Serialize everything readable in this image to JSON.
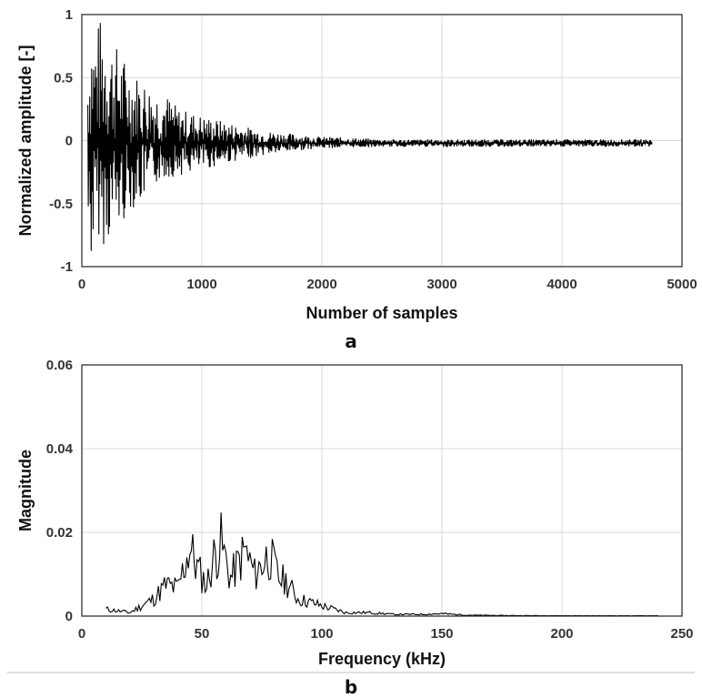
{
  "chart_data": [
    {
      "type": "line",
      "panel_label": "a",
      "xlabel": "Number of samples",
      "ylabel": "Normalized amplitude [-]",
      "xlim": [
        0,
        5000
      ],
      "ylim": [
        -1,
        1
      ],
      "xticks": [
        0,
        1000,
        2000,
        3000,
        4000,
        5000
      ],
      "yticks": [
        -1,
        -0.5,
        0,
        0.5,
        1
      ],
      "xtick_labels": [
        "0",
        "1000",
        "2000",
        "3000",
        "4000",
        "5000"
      ],
      "ytick_labels": [
        "-1",
        "-0.5",
        "0",
        "0.5",
        "1"
      ],
      "grid": true,
      "series_color": "#000000",
      "series": [
        {
          "x": [
            50,
            80,
            100,
            150,
            200,
            250,
            300,
            400,
            500,
            600,
            700,
            800,
            1000,
            1200,
            1500,
            1800,
            2000,
            2100,
            2500,
            3000,
            3500,
            4000,
            4500,
            4750
          ],
          "envelope_upper": [
            0.6,
            1.0,
            0.85,
            0.98,
            0.95,
            0.8,
            0.75,
            0.58,
            0.5,
            0.42,
            0.38,
            0.26,
            0.2,
            0.15,
            0.08,
            0.05,
            0.03,
            0.03,
            0.01,
            0.01,
            0.01,
            0.01,
            0.01,
            0.01
          ],
          "envelope_lower": [
            -0.9,
            -1.0,
            -0.85,
            -0.75,
            -0.88,
            -0.7,
            -0.72,
            -0.55,
            -0.5,
            -0.36,
            -0.3,
            -0.28,
            -0.24,
            -0.18,
            -0.12,
            -0.08,
            -0.06,
            -0.06,
            -0.05,
            -0.05,
            -0.05,
            -0.05,
            -0.05,
            -0.05
          ],
          "baseline": -0.02
        }
      ]
    },
    {
      "type": "line",
      "panel_label": "b",
      "xlabel": "Frequency (kHz)",
      "ylabel": "Magnitude",
      "xlim": [
        0,
        250
      ],
      "ylim": [
        0,
        0.06
      ],
      "xticks": [
        0,
        50,
        100,
        150,
        200,
        250
      ],
      "yticks": [
        0,
        0.02,
        0.04,
        0.06
      ],
      "xtick_labels": [
        "0",
        "50",
        "100",
        "150",
        "200",
        "250"
      ],
      "ytick_labels": [
        "0",
        "0.02",
        "0.04",
        "0.06"
      ],
      "grid": true,
      "series_color": "#000000",
      "series": [
        {
          "x": [
            10,
            20,
            25,
            30,
            35,
            40,
            45,
            48,
            52,
            55,
            58,
            62,
            65,
            68,
            72,
            75,
            78,
            82,
            85,
            90,
            95,
            100,
            105,
            110,
            120,
            130,
            140,
            150,
            160,
            170,
            200,
            240
          ],
          "y": [
            0.002,
            0.001,
            0.003,
            0.005,
            0.009,
            0.008,
            0.02,
            0.014,
            0.009,
            0.017,
            0.021,
            0.011,
            0.015,
            0.019,
            0.012,
            0.015,
            0.018,
            0.011,
            0.01,
            0.005,
            0.004,
            0.003,
            0.002,
            0.001,
            0.001,
            0.0005,
            0.0005,
            0.0007,
            0.0003,
            0.0002,
            0.0001,
            0.0001
          ]
        }
      ]
    }
  ]
}
